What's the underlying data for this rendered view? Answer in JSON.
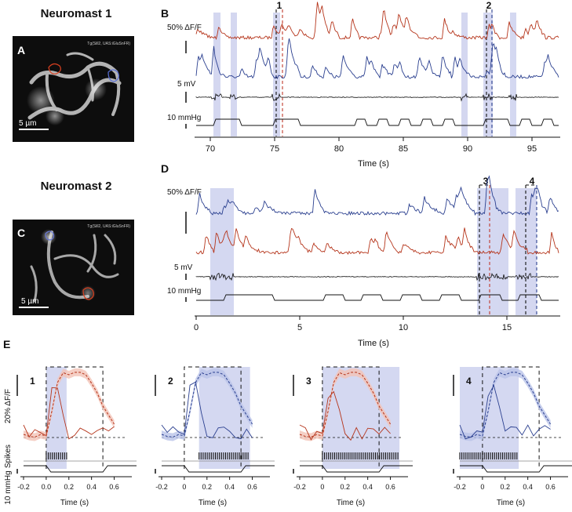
{
  "colors": {
    "red": "#b5341a",
    "blue": "#2a3f8f",
    "shade": "#cdd1ee",
    "black": "#111111"
  },
  "panelA": {
    "title": "Neuromast 1",
    "letter": "A",
    "tag": "Tg(Sill2, UAS:iGluSnFR)",
    "scale": "5 µm"
  },
  "panelC": {
    "title": "Neuromast 2",
    "letter": "C",
    "tag": "Tg(Sill2, UAS:iGluSnFR)",
    "scale": "5 µm"
  },
  "panelB": {
    "letter": "B",
    "df_label": "50% ΔF/F",
    "mv_label": "5 mV",
    "mmhg_label": "10 mmHg",
    "xlabel": "Time (s)",
    "xticks": [
      "70",
      "75",
      "80",
      "85",
      "90",
      "95"
    ],
    "markers": [
      "1",
      "2"
    ]
  },
  "panelD": {
    "letter": "D",
    "df_label": "50% ΔF/F",
    "mv_label": "5 mV",
    "mmhg_label": "10 mmHg",
    "xlabel": "Time (s)",
    "xticks": [
      "0",
      "5",
      "10",
      "15"
    ],
    "markers": [
      "3",
      "4"
    ]
  },
  "panelE": {
    "letter": "E",
    "ylabel_df": "20% ΔF/F",
    "ylabel_spikes": "Spikes",
    "ylabel_mmhg": "10 mmHg",
    "xlabel": "Time (s)",
    "subpanels": [
      {
        "num": "1",
        "xticks": [
          "-0.2",
          "0.0",
          "0.2",
          "0.4",
          "0.6"
        ]
      },
      {
        "num": "2",
        "xticks": [
          "-0.2",
          "0",
          "0.2",
          "0.4",
          "0.6"
        ]
      },
      {
        "num": "3",
        "xticks": [
          "-0.2",
          "0",
          "0.2",
          "0.4",
          "0.6"
        ]
      },
      {
        "num": "4",
        "xticks": [
          "-0.2",
          "0",
          "0.2",
          "0.4",
          "0.6"
        ]
      }
    ]
  }
}
